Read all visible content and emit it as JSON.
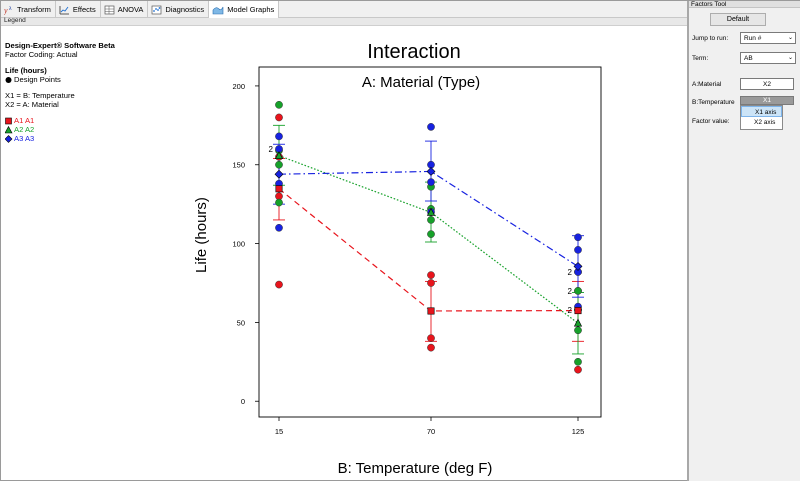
{
  "toolbar": {
    "tabs": [
      {
        "label": "Transform",
        "icon": "transform-icon"
      },
      {
        "label": "Effects",
        "icon": "effects-icon"
      },
      {
        "label": "ANOVA",
        "icon": "anova-icon"
      },
      {
        "label": "Diagnostics",
        "icon": "diagnostics-icon"
      },
      {
        "label": "Model Graphs",
        "icon": "model-graphs-icon",
        "active": true
      }
    ]
  },
  "legend": {
    "header": "Legend",
    "software": "Design-Expert® Software Beta",
    "coding": "Factor Coding: Actual",
    "response": "Life (hours)",
    "design_points": "Design Points",
    "x1": "X1 = B: Temperature",
    "x2": "X2 = A: Material",
    "series": [
      {
        "label": "A1 A1",
        "color": "#e8141c",
        "marker": "square"
      },
      {
        "label": "A2 A2",
        "color": "#16a12a",
        "marker": "triangle"
      },
      {
        "label": "A3 A3",
        "color": "#1722e0",
        "marker": "diamond"
      }
    ]
  },
  "chart_data": {
    "type": "line",
    "title": "Interaction",
    "subtitle": "A: Material (Type)",
    "xlabel": "B: Temperature (deg F)",
    "ylabel": "Life (hours)",
    "categories": [
      "15",
      "70",
      "125"
    ],
    "yticks": [
      "0",
      "50",
      "100",
      "150",
      "200"
    ],
    "ylim": [
      -10,
      212
    ],
    "series": [
      {
        "name": "A1 A1",
        "color": "#e8141c",
        "style": "dashed",
        "means": [
          134.75,
          57.25,
          57.5
        ],
        "ci": [
          [
            115,
            154
          ],
          [
            38,
            76
          ],
          [
            38,
            76
          ]
        ],
        "points": [
          [
            130,
            155,
            74,
            180
          ],
          [
            34,
            40,
            80,
            75
          ],
          [
            20,
            70,
            82,
            58
          ]
        ]
      },
      {
        "name": "A2 A2",
        "color": "#16a12a",
        "style": "dotted",
        "means": [
          155.75,
          119.75,
          49.5
        ],
        "ci": [
          [
            137,
            175
          ],
          [
            101,
            139
          ],
          [
            30,
            69
          ]
        ],
        "points": [
          [
            150,
            188,
            159,
            126
          ],
          [
            136,
            122,
            106,
            115
          ],
          [
            25,
            70,
            58,
            45
          ]
        ]
      },
      {
        "name": "A3 A3",
        "color": "#1722e0",
        "style": "dashdot",
        "means": [
          144,
          145.75,
          85.5
        ],
        "ci": [
          [
            125,
            163
          ],
          [
            127,
            165
          ],
          [
            66,
            105
          ]
        ],
        "points": [
          [
            138,
            110,
            168,
            160
          ],
          [
            174,
            120,
            150,
            139
          ],
          [
            96,
            104,
            82,
            60
          ]
        ]
      }
    ],
    "point_labels": [
      {
        "text": "2",
        "category": 0,
        "y": 160
      },
      {
        "text": "2",
        "category": 2,
        "y": 82
      },
      {
        "text": "2",
        "category": 2,
        "y": 70
      },
      {
        "text": "2",
        "category": 2,
        "y": 58
      }
    ]
  },
  "factors_tool": {
    "title": "Factors Tool",
    "default_button": "Default",
    "jump_label": "Jump to run:",
    "jump_value": "Run #",
    "term_label": "Term:",
    "term_value": "AB",
    "material_label": "A:Material",
    "material_value": "X2",
    "temperature_label": "B:Temperature",
    "temperature_value": "X1",
    "factor_value_label": "Factor value:",
    "dropdown_options": [
      "X1 axis",
      "X2 axis"
    ]
  }
}
